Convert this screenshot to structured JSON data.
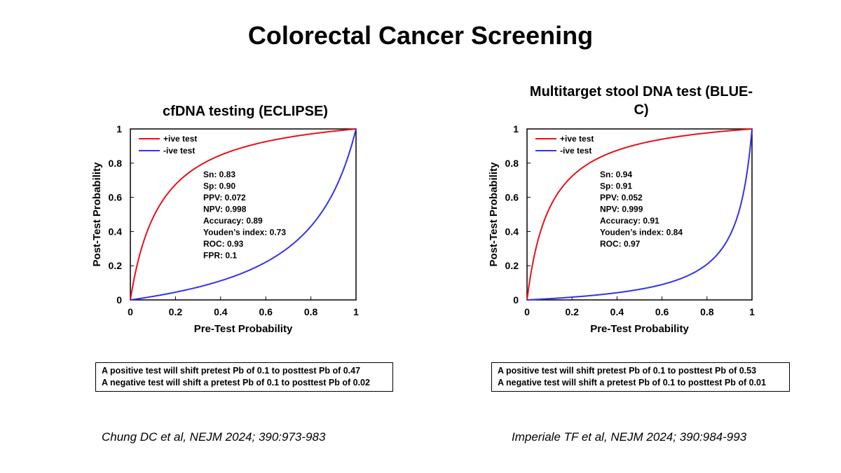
{
  "slide": {
    "title": "Colorectal Cancer Screening"
  },
  "colors": {
    "positive": "#e8101a",
    "negative": "#3333ee",
    "axis": "#000000"
  },
  "chart_data": [
    {
      "type": "line",
      "title": "cfDNA testing (ECLIPSE)",
      "xlabel": "Pre-Test Probability",
      "ylabel": "Post-Test Probability",
      "xlim": [
        0,
        1
      ],
      "ylim": [
        0,
        1
      ],
      "xticks": [
        "0",
        "0.2",
        "0.4",
        "0.6",
        "0.8",
        "1"
      ],
      "yticks": [
        "0",
        "0.2",
        "0.4",
        "0.6",
        "0.8",
        "1"
      ],
      "grid": false,
      "legend_position": "top-left",
      "series": [
        {
          "name": "+ive test",
          "sensitivity": 0.83,
          "specificity": 0.9,
          "color": "#e8101a"
        },
        {
          "name": "-ive test",
          "sensitivity": 0.83,
          "specificity": 0.9,
          "color": "#3333ee"
        }
      ],
      "stats": [
        "Sn: 0.83",
        "Sp: 0.90",
        "PPV: 0.072",
        "NPV: 0.998",
        "Accuracy: 0.89",
        "Youden’s index: 0.73",
        "ROC: 0.93",
        "FPR: 0.1"
      ]
    },
    {
      "type": "line",
      "title": "Multitarget stool DNA test (BLUE-C)",
      "xlabel": "Pre-Test Probability",
      "ylabel": "Post-Test Probability",
      "xlim": [
        0,
        1
      ],
      "ylim": [
        0,
        1
      ],
      "xticks": [
        "0",
        "0.2",
        "0.4",
        "0.6",
        "0.8",
        "1"
      ],
      "yticks": [
        "0",
        "0.2",
        "0.4",
        "0.6",
        "0.8",
        "1"
      ],
      "grid": false,
      "legend_position": "top-left",
      "series": [
        {
          "name": "+ive test",
          "sensitivity": 0.94,
          "specificity": 0.91,
          "color": "#e8101a"
        },
        {
          "name": "-ive test",
          "sensitivity": 0.94,
          "specificity": 0.91,
          "color": "#3333ee"
        }
      ],
      "stats": [
        "Sn: 0.94",
        "Sp: 0.91",
        "PPV: 0.052",
        "NPV: 0.999",
        "Accuracy: 0.91",
        "Youden’s index: 0.84",
        "ROC: 0.97"
      ]
    }
  ],
  "notes": [
    {
      "line1": "A positive test will shift pretest Pb of 0.1 to posttest Pb of 0.47",
      "line2": "A negative test will shift a pretest Pb of 0.1 to posttest Pb of 0.02"
    },
    {
      "line1": "A positive test will shift pretest Pb of 0.1 to posttest Pb of 0.53",
      "line2": "A negative test will shift a pretest Pb of 0.1 to posttest Pb of 0.01"
    }
  ],
  "citations": [
    "Chung DC et al, NEJM 2024; 390:973-983",
    "Imperiale TF et al, NEJM 2024; 390:984-993"
  ]
}
